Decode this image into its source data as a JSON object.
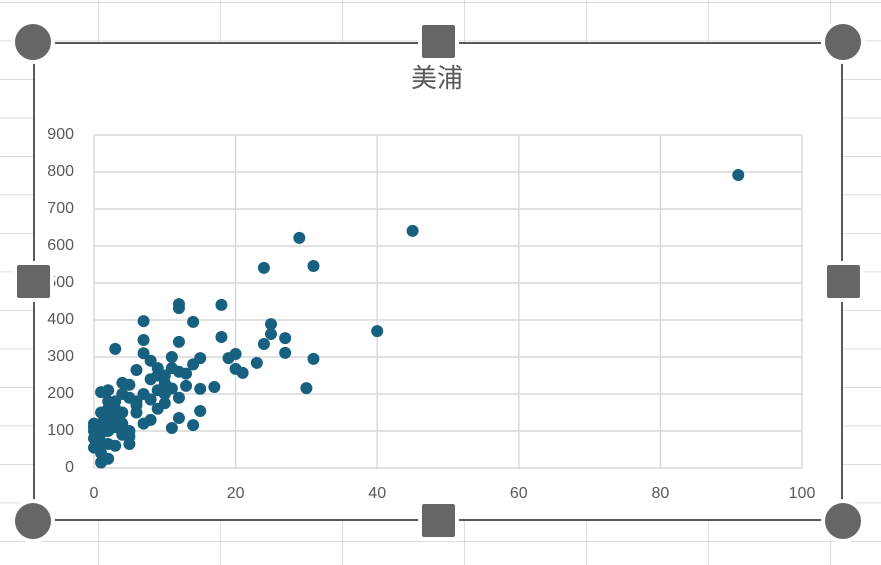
{
  "chart_data": {
    "type": "scatter",
    "title": "美浦",
    "x": [
      91,
      45,
      29,
      24,
      31,
      40,
      31,
      30,
      25,
      25,
      27,
      27,
      24,
      23,
      21,
      20,
      19,
      20,
      18,
      18,
      12,
      12,
      14,
      7,
      12,
      7,
      3,
      15,
      17,
      15,
      15,
      14,
      11,
      12,
      13,
      12,
      11,
      10,
      9,
      8,
      7,
      6,
      8,
      10,
      9,
      11,
      12,
      8,
      7,
      10,
      9,
      8,
      6,
      5,
      5,
      4,
      4,
      3,
      2,
      1,
      2,
      3,
      4,
      5,
      5,
      5,
      4,
      3,
      2,
      1,
      1,
      0,
      0,
      0,
      0,
      1,
      2,
      2,
      1,
      3,
      2,
      6,
      7,
      13,
      14,
      11,
      9,
      10,
      6,
      3,
      4,
      2,
      1,
      0,
      1
    ],
    "values": [
      792,
      641,
      622,
      541,
      546,
      370,
      295,
      216,
      389,
      362,
      351,
      311,
      335,
      284,
      257,
      268,
      297,
      308,
      441,
      354,
      443,
      432,
      395,
      397,
      341,
      346,
      322,
      297,
      219,
      214,
      154,
      116,
      108,
      135,
      222,
      260,
      300,
      250,
      270,
      290,
      310,
      265,
      240,
      230,
      210,
      215,
      190,
      185,
      200,
      175,
      160,
      130,
      170,
      190,
      225,
      230,
      200,
      180,
      210,
      205,
      160,
      140,
      120,
      100,
      85,
      65,
      90,
      110,
      130,
      150,
      120,
      100,
      80,
      120,
      55,
      15,
      25,
      65,
      70,
      60,
      100,
      150,
      120,
      255,
      280,
      270,
      250,
      200,
      180,
      160,
      150,
      180,
      95,
      110,
      40
    ],
    "color": "#17607f",
    "xlim": [
      0,
      100
    ],
    "xticks": [
      0,
      20,
      40,
      60,
      80,
      100
    ],
    "ylim": [
      0,
      900
    ],
    "yticks": [
      0,
      100,
      200,
      300,
      400,
      500,
      600,
      700,
      800,
      900
    ],
    "grid": true
  }
}
